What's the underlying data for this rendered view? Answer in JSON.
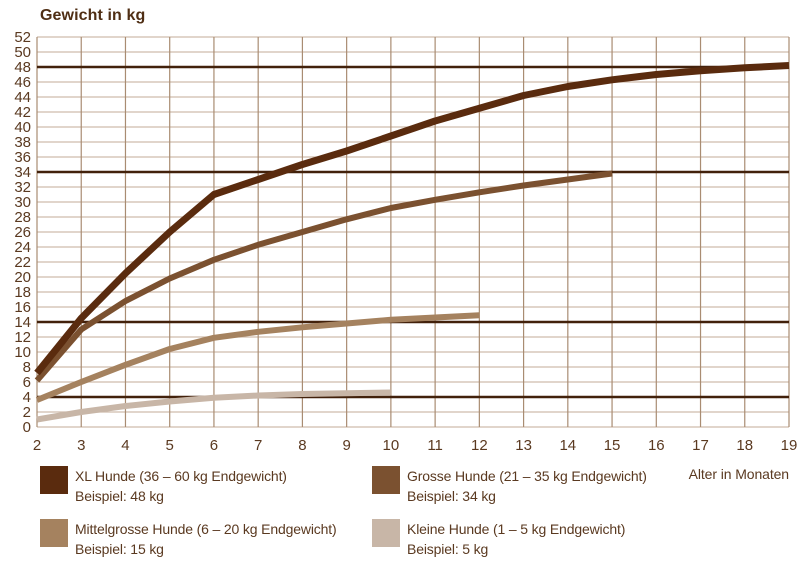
{
  "title": "Gewicht in kg",
  "x_axis_title": "Alter in Monaten",
  "colors": {
    "background": "#ffffff",
    "text": "#5a3920",
    "title_text": "#4f2e14",
    "grid_horizontal": "#cfbcac",
    "grid_vertical": "#a98c72",
    "reference_line": "#42210b",
    "xl": "#5a2b0e",
    "grosse": "#7b5130",
    "mittelgrosse": "#a5825f",
    "kleine": "#c8b6a7"
  },
  "chart_data": {
    "type": "line",
    "title": "Gewicht in kg",
    "xlabel": "Alter in Monaten",
    "ylabel": "Gewicht in kg",
    "xlim": [
      2,
      19
    ],
    "ylim": [
      0,
      52
    ],
    "grid": true,
    "legend_position": "bottom",
    "x_ticks": [
      2,
      3,
      4,
      5,
      6,
      7,
      8,
      9,
      10,
      11,
      12,
      13,
      14,
      15,
      16,
      17,
      18,
      19
    ],
    "y_ticks": [
      0,
      2,
      4,
      6,
      8,
      10,
      12,
      14,
      16,
      18,
      20,
      22,
      24,
      26,
      28,
      30,
      32,
      34,
      36,
      38,
      40,
      42,
      44,
      46,
      48,
      50,
      52
    ],
    "reference_lines_kg": [
      48,
      34,
      14,
      4
    ],
    "series": [
      {
        "name": "XL Hunde (36 – 60 kg Endgewicht)",
        "example": "Beispiel: 48 kg",
        "color": "#5a2b0e",
        "stroke_width": 7,
        "x": [
          2,
          3,
          4,
          5,
          6,
          7,
          8,
          9,
          10,
          11,
          12,
          13,
          14,
          15,
          16,
          17,
          18,
          19
        ],
        "values": [
          7.2,
          14.5,
          20.5,
          26,
          31,
          33,
          35,
          36.8,
          38.8,
          40.8,
          42.5,
          44.2,
          45.4,
          46.3,
          47,
          47.5,
          47.9,
          48.2
        ]
      },
      {
        "name": "Grosse Hunde (21 – 35 kg Endgewicht)",
        "example": "Beispiel: 34 kg",
        "color": "#7b5130",
        "stroke_width": 6,
        "x": [
          2,
          3,
          4,
          5,
          6,
          7,
          8,
          9,
          10,
          11,
          12,
          13,
          14,
          15
        ],
        "values": [
          6.2,
          13,
          16.8,
          19.8,
          22.3,
          24.3,
          26,
          27.7,
          29.2,
          30.3,
          31.3,
          32.2,
          33,
          33.8
        ]
      },
      {
        "name": "Mittelgrosse Hunde (6 – 20 kg Endgewicht)",
        "example": "Beispiel: 15 kg",
        "color": "#a5825f",
        "stroke_width": 6,
        "x": [
          2,
          3,
          4,
          5,
          6,
          7,
          8,
          9,
          10,
          11,
          12
        ],
        "values": [
          3.6,
          6,
          8.3,
          10.4,
          11.9,
          12.7,
          13.3,
          13.8,
          14.3,
          14.6,
          14.9
        ]
      },
      {
        "name": "Kleine Hunde (1 – 5 kg Endgewicht)",
        "example": "Beispiel: 5 kg",
        "color": "#c8b6a7",
        "stroke_width": 6,
        "x": [
          2,
          3,
          4,
          5,
          6,
          7,
          8,
          9,
          10
        ],
        "values": [
          1,
          2,
          2.8,
          3.4,
          3.9,
          4.2,
          4.4,
          4.5,
          4.6
        ]
      }
    ]
  },
  "legend": {
    "items": [
      {
        "label": "XL Hunde (36 – 60 kg Endgewicht)",
        "example": "Beispiel: 48 kg",
        "color": "#5a2b0e"
      },
      {
        "label": "Grosse Hunde (21 – 35 kg Endgewicht)",
        "example": "Beispiel: 34 kg",
        "color": "#7b5130"
      },
      {
        "label": "Mittelgrosse Hunde (6 – 20 kg Endgewicht)",
        "example": "Beispiel: 15 kg",
        "color": "#a5825f"
      },
      {
        "label": "Kleine Hunde (1 – 5 kg Endgewicht)",
        "example": "Beispiel: 5 kg",
        "color": "#c8b6a7"
      }
    ]
  }
}
